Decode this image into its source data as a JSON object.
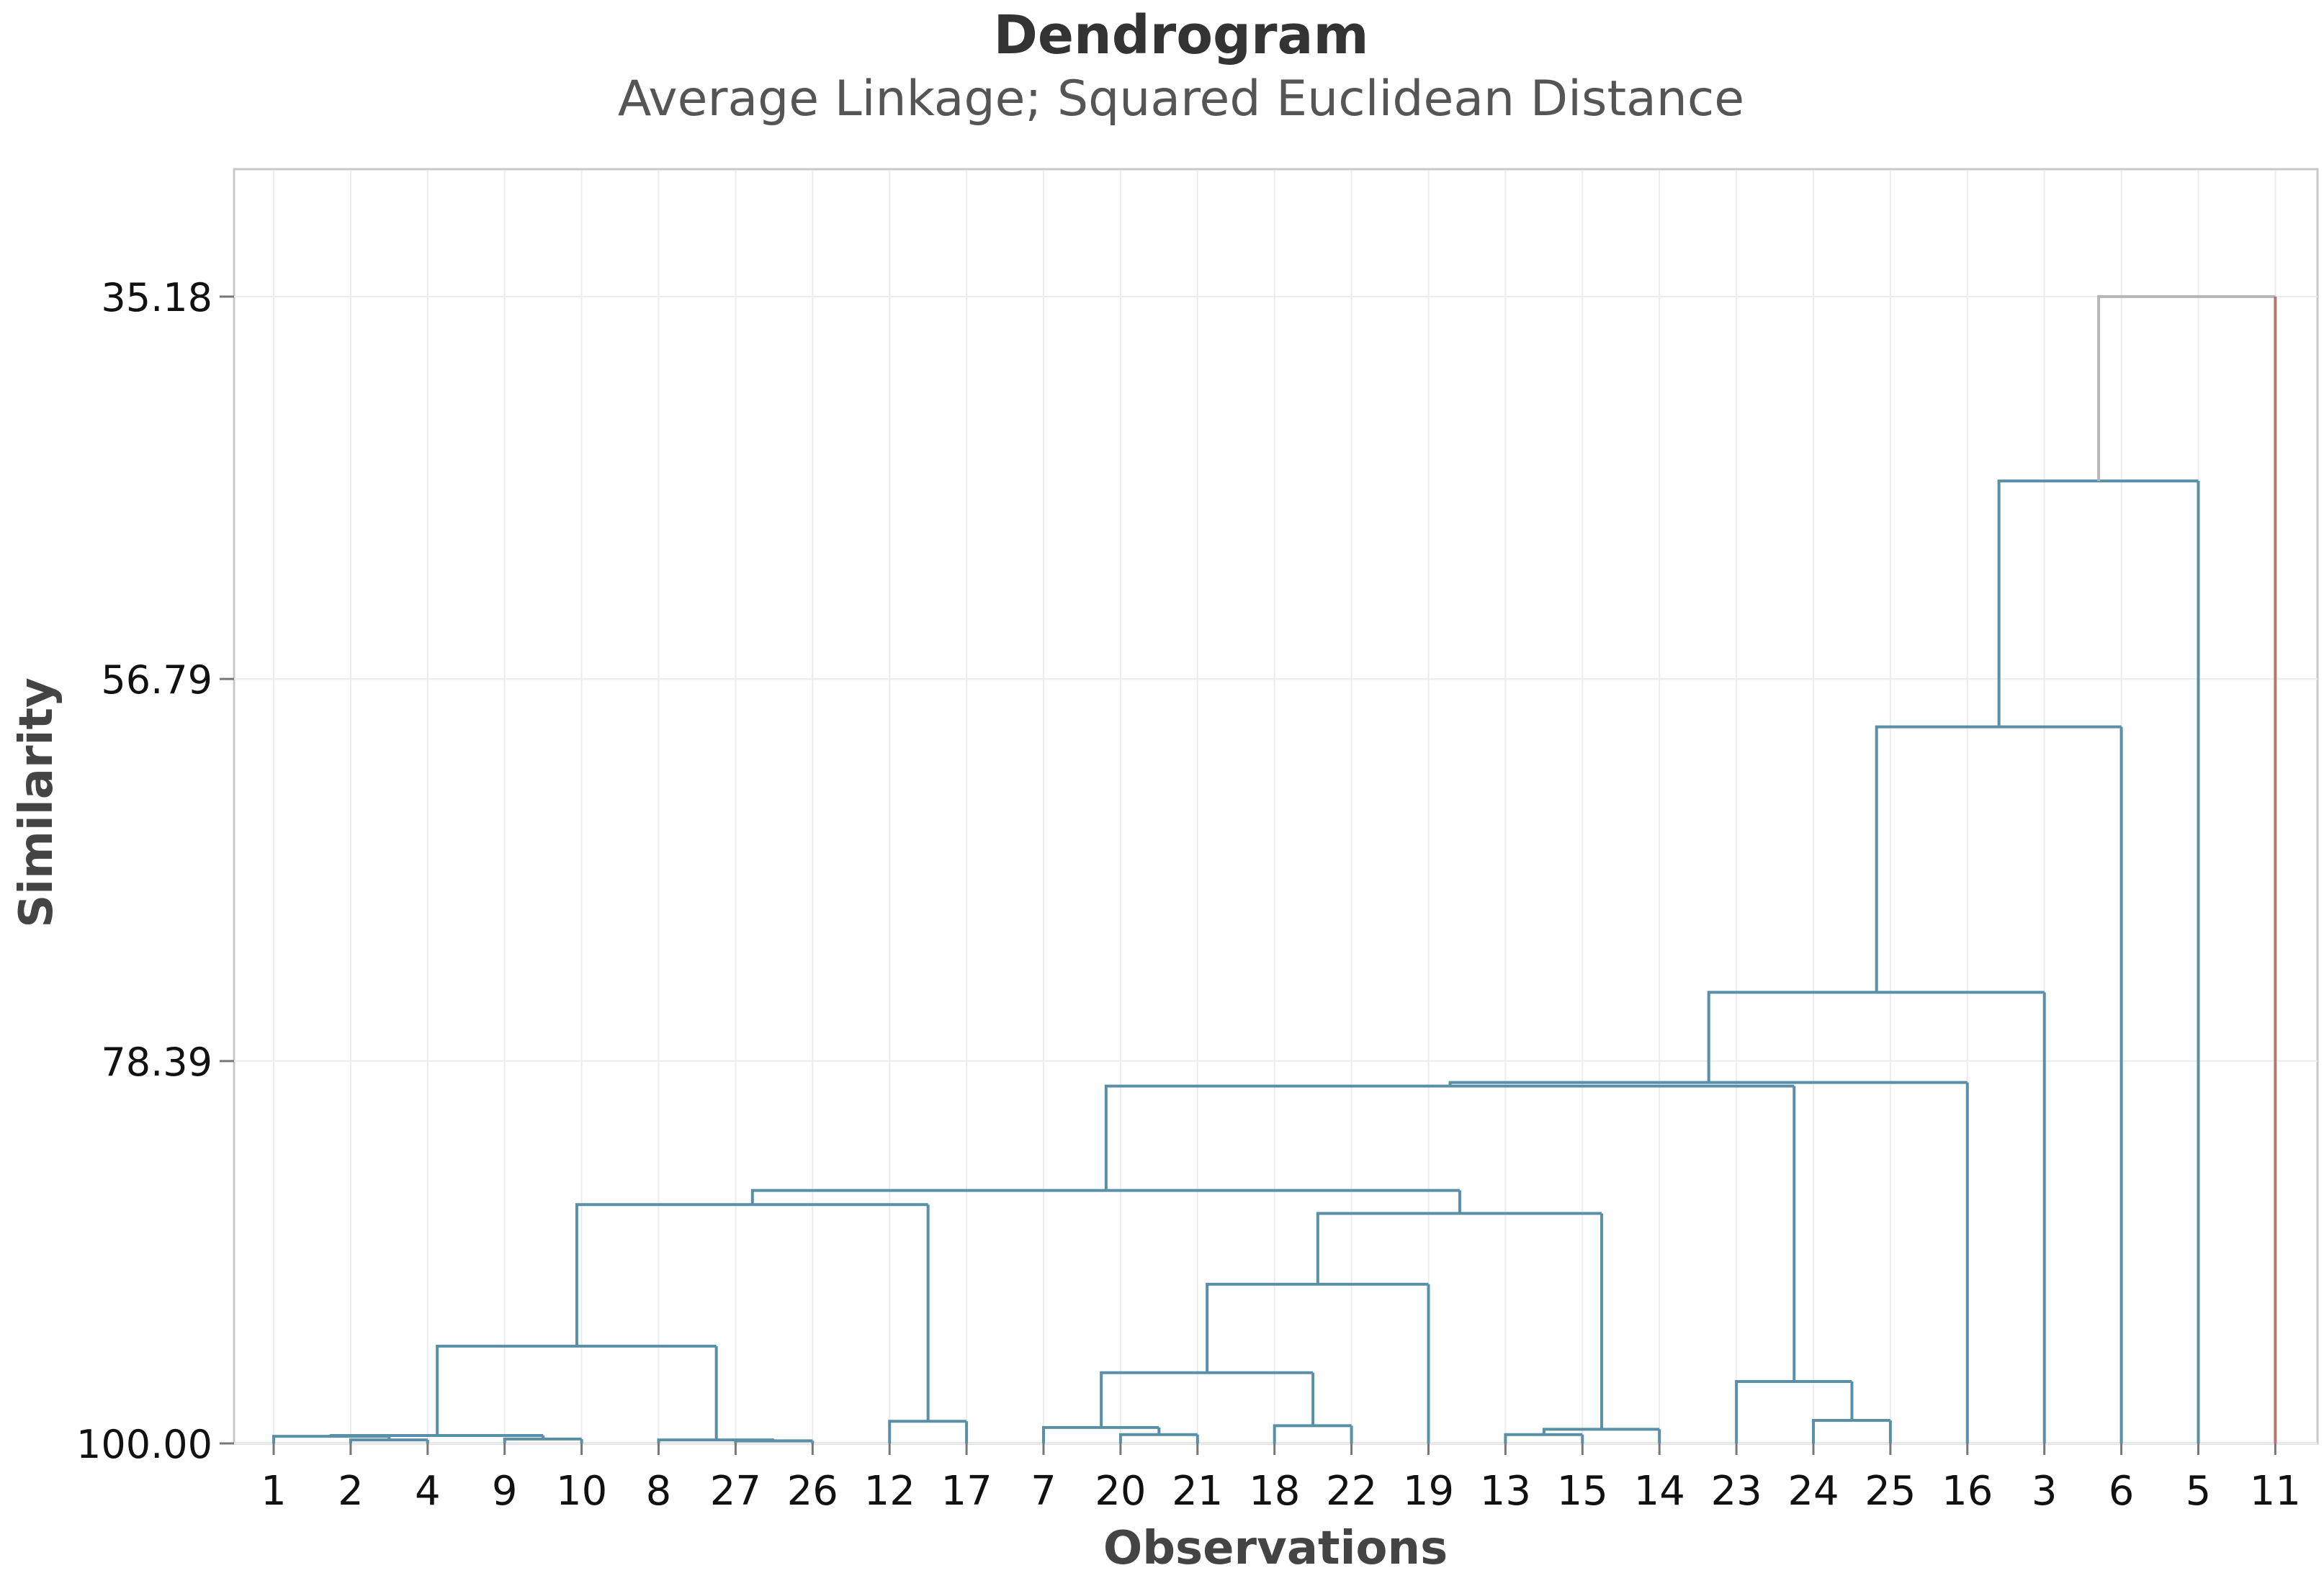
{
  "chart_data": {
    "type": "dendrogram",
    "title": "Dendrogram",
    "subtitle": "Average Linkage; Squared Euclidean Distance",
    "xlabel": "Observations",
    "ylabel": "Similarity",
    "ylim": [
      28.0,
      100.0
    ],
    "yticks": [
      {
        "value": 35.18,
        "label": "35.18"
      },
      {
        "value": 56.79,
        "label": "56.79"
      },
      {
        "value": 78.39,
        "label": "78.39"
      },
      {
        "value": 100.0,
        "label": "100.00"
      }
    ],
    "leaves": [
      "1",
      "2",
      "4",
      "9",
      "10",
      "8",
      "27",
      "26",
      "12",
      "17",
      "7",
      "20",
      "21",
      "18",
      "22",
      "19",
      "13",
      "15",
      "14",
      "23",
      "24",
      "25",
      "16",
      "3",
      "6",
      "5",
      "11"
    ],
    "merges": [
      {
        "a": "2",
        "b": "4",
        "sim": 99.8
      },
      {
        "a": "1",
        "b": "#0",
        "sim": 99.6
      },
      {
        "a": "9",
        "b": "10",
        "sim": 99.75
      },
      {
        "a": "#1",
        "b": "#2",
        "sim": 99.55
      },
      {
        "a": "27",
        "b": "26",
        "sim": 99.85
      },
      {
        "a": "8",
        "b": "#4",
        "sim": 99.8
      },
      {
        "a": "#3",
        "b": "#5",
        "sim": 94.5
      },
      {
        "a": "12",
        "b": "17",
        "sim": 98.75
      },
      {
        "a": "#6",
        "b": "#7",
        "sim": 86.5
      },
      {
        "a": "20",
        "b": "21",
        "sim": 99.5
      },
      {
        "a": "7",
        "b": "#9",
        "sim": 99.1
      },
      {
        "a": "18",
        "b": "22",
        "sim": 99.0
      },
      {
        "a": "#10",
        "b": "#11",
        "sim": 96.0
      },
      {
        "a": "#12",
        "b": "19",
        "sim": 91.0
      },
      {
        "a": "13",
        "b": "15",
        "sim": 99.5
      },
      {
        "a": "#14",
        "b": "14",
        "sim": 99.2
      },
      {
        "a": "#13",
        "b": "#15",
        "sim": 87.0
      },
      {
        "a": "#8",
        "b": "#16",
        "sim": 85.7
      },
      {
        "a": "24",
        "b": "25",
        "sim": 98.7
      },
      {
        "a": "23",
        "b": "#18",
        "sim": 96.5
      },
      {
        "a": "#17",
        "b": "#19",
        "sim": 79.8
      },
      {
        "a": "#20",
        "b": "16",
        "sim": 79.6
      },
      {
        "a": "#21",
        "b": "3",
        "sim": 74.5
      },
      {
        "a": "#22",
        "b": "6",
        "sim": 59.5
      },
      {
        "a": "#23",
        "b": "5",
        "sim": 45.6
      },
      {
        "a": "#24",
        "b": "11",
        "sim": 35.18
      }
    ],
    "colors": {
      "branch": "#5a8fa8",
      "final_branch": "#b7766f",
      "root_bar": "#b7b7b7",
      "grid": "#ececec",
      "frame": "#c8c8c8"
    }
  }
}
